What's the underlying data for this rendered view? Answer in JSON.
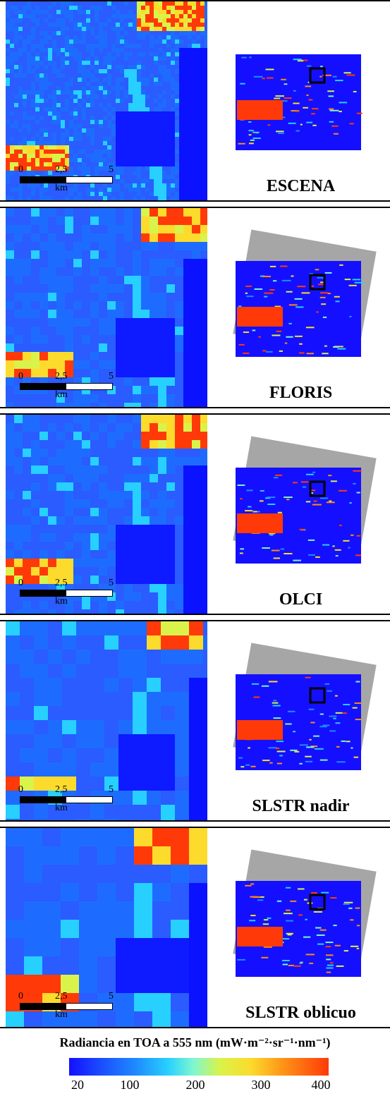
{
  "panels": [
    {
      "label": "ESCENA"
    },
    {
      "label": "FLORIS"
    },
    {
      "label": "OLCI"
    },
    {
      "label": "SLSTR nadir"
    },
    {
      "label": "SLSTR oblicuo"
    }
  ],
  "scale_bar": {
    "t0": "0",
    "t1": "2,5",
    "t2": "5",
    "unit": "km"
  },
  "colorbar": {
    "title": "Radiancia en TOA a 555 nm (mW·m⁻²·sr⁻¹·nm⁻¹)",
    "ticks": [
      "20",
      "100",
      "200",
      "300",
      "400"
    ],
    "colors": [
      "#1410ff",
      "#1e8cff",
      "#27d0ff",
      "#d9f34a",
      "#ff8b14",
      "#ff3a08"
    ]
  }
}
